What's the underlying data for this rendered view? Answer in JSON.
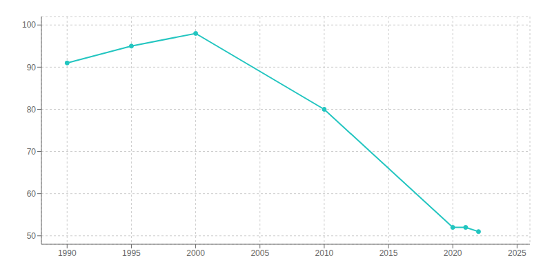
{
  "chart_data": {
    "type": "line",
    "x": [
      1990,
      1995,
      2000,
      2010,
      2020,
      2021,
      2022
    ],
    "values": [
      91,
      95,
      98,
      80,
      52,
      52,
      51
    ],
    "color": "#22c5c0",
    "marker": "circle",
    "xlim": [
      1988,
      2026
    ],
    "ylim": [
      48,
      102
    ],
    "xticks": [
      1990,
      1995,
      2000,
      2005,
      2010,
      2015,
      2020,
      2025
    ],
    "yticks": [
      50,
      60,
      70,
      80,
      90,
      100
    ],
    "grid": true
  }
}
